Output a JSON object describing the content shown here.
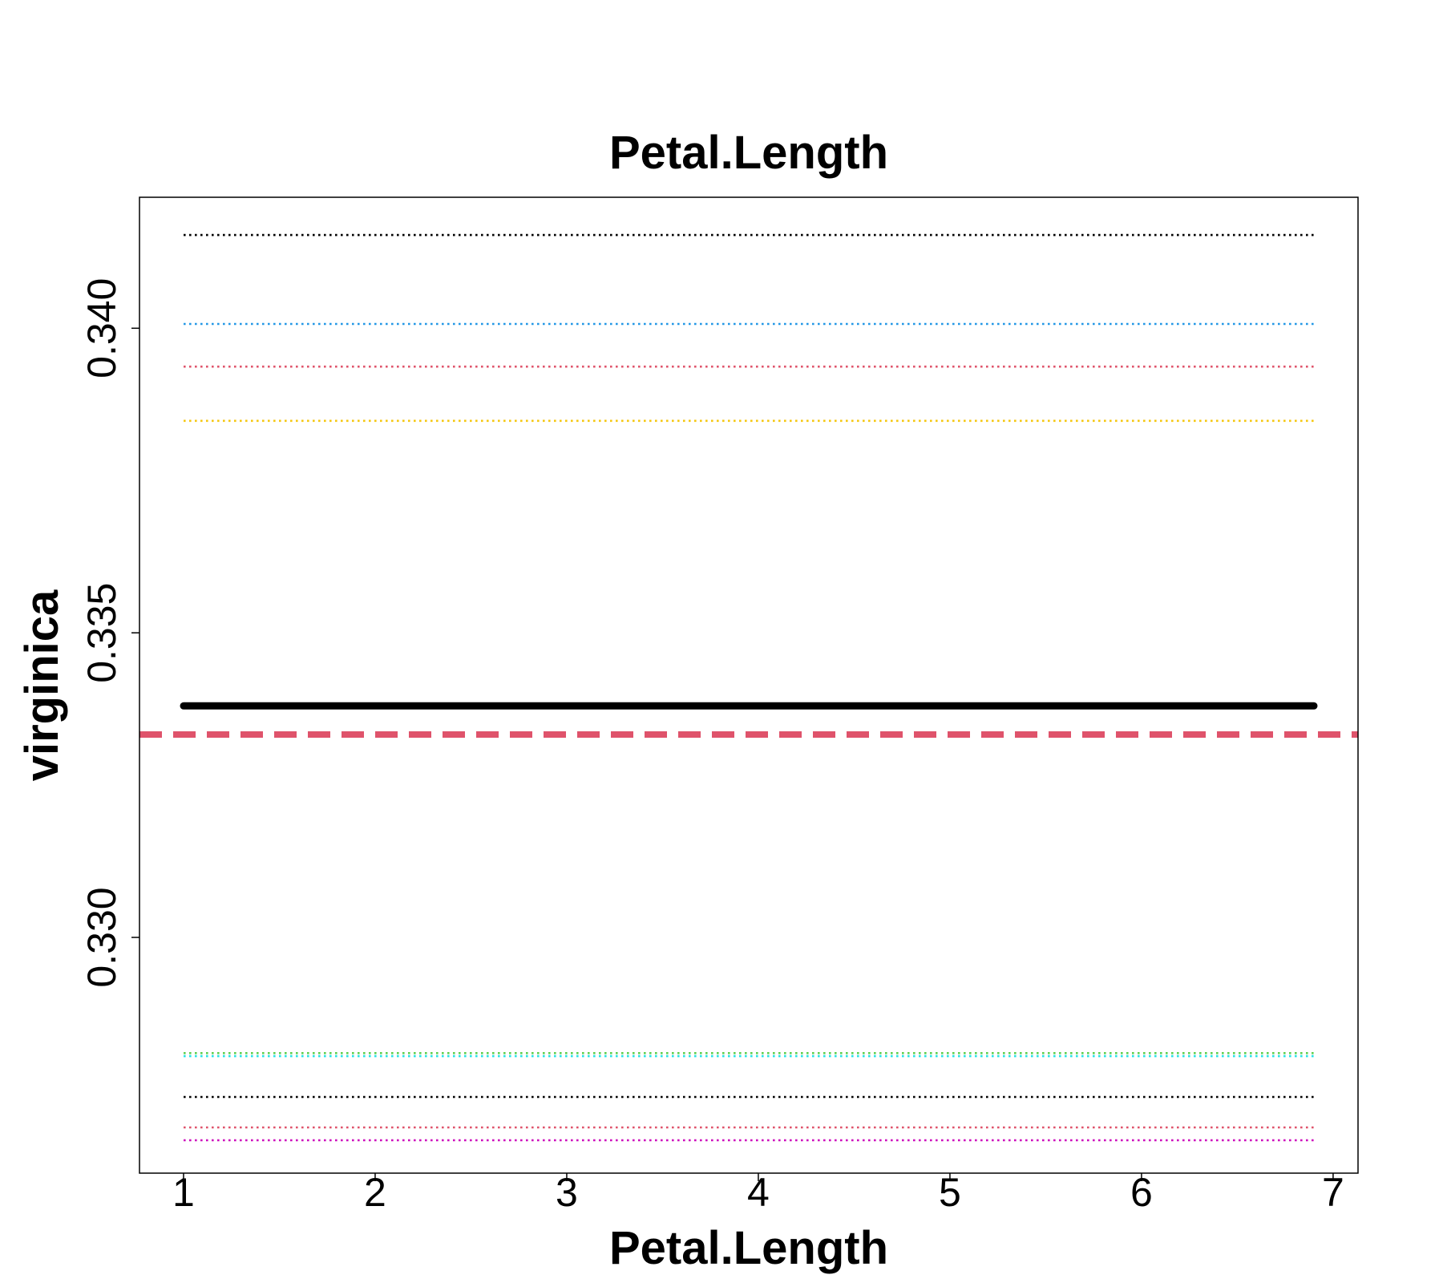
{
  "chart_data": {
    "type": "line",
    "title": "Petal.Length",
    "xlabel": "Petal.Length",
    "ylabel": "virginica",
    "xlim": [
      0.77,
      7.13
    ],
    "ylim": [
      0.32613,
      0.34215
    ],
    "x_ticks": [
      1,
      2,
      3,
      4,
      5,
      6,
      7
    ],
    "x_tick_labels": [
      "1",
      "2",
      "3",
      "4",
      "5",
      "6",
      "7"
    ],
    "y_ticks": [
      0.33,
      0.335,
      0.34
    ],
    "y_tick_labels": [
      "0.330",
      "0.335",
      "0.340"
    ],
    "grid": false,
    "series": [
      {
        "x": [
          1,
          6.9
        ],
        "y": [
          0.3338,
          0.3338
        ],
        "color": "#000000",
        "style": "solid"
      },
      {
        "x": [
          1,
          6.9
        ],
        "y": [
          0.34153,
          0.34153
        ],
        "color": "#000000",
        "style": "dotted"
      },
      {
        "x": [
          1,
          6.9
        ],
        "y": [
          0.34007,
          0.34007
        ],
        "color": "#2297E6",
        "style": "dotted"
      },
      {
        "x": [
          1,
          6.9
        ],
        "y": [
          0.33937,
          0.33937
        ],
        "color": "#DF536B",
        "style": "dotted"
      },
      {
        "x": [
          1,
          6.9
        ],
        "y": [
          0.33848,
          0.33848
        ],
        "color": "#F5C710",
        "style": "dotted"
      },
      {
        "x": [
          1,
          6.9
        ],
        "y": [
          0.3281,
          0.3281
        ],
        "color": "#61D04F",
        "style": "dotted"
      },
      {
        "x": [
          1,
          6.9
        ],
        "y": [
          0.32805,
          0.32805
        ],
        "color": "#28E2E5",
        "style": "dotted"
      },
      {
        "x": [
          1,
          6.9
        ],
        "y": [
          0.32738,
          0.32738
        ],
        "color": "#000000",
        "style": "dotted"
      },
      {
        "x": [
          1,
          6.9
        ],
        "y": [
          0.32688,
          0.32688
        ],
        "color": "#DF536B",
        "style": "dotted"
      },
      {
        "x": [
          1,
          6.9
        ],
        "y": [
          0.32667,
          0.32667
        ],
        "color": "#CD0BBC",
        "style": "dotted"
      }
    ],
    "reference_lines": [
      {
        "orientation": "horizontal",
        "y": 0.33333,
        "color": "#DF536B",
        "style": "dashed"
      }
    ]
  }
}
